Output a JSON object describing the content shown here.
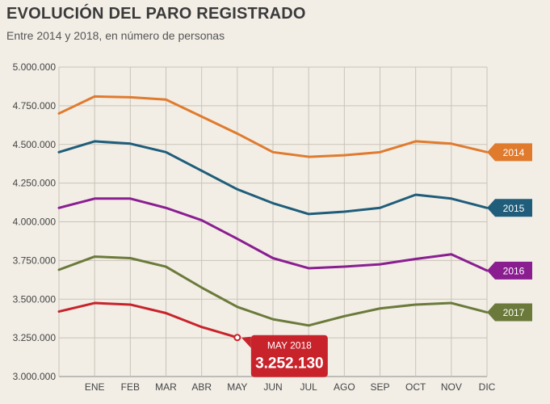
{
  "header": {
    "title": "EVOLUCIÓN DEL PARO REGISTRADO",
    "subtitle": "Entre 2014 y 2018, en número de personas"
  },
  "chart_data": {
    "type": "line",
    "title": "EVOLUCIÓN DEL PARO REGISTRADO",
    "subtitle": "Entre 2014 y 2018, en número de personas",
    "xlabel": "",
    "ylabel": "",
    "x_ticks": [
      "",
      "ENE",
      "FEB",
      "MAR",
      "ABR",
      "MAY",
      "JUN",
      "JUL",
      "AGO",
      "SEP",
      "OCT",
      "NOV",
      "DIC"
    ],
    "y_ticks": [
      "3.000.000",
      "3.250.000",
      "3.500.000",
      "3.750.000",
      "4.000.000",
      "4.250.000",
      "4.500.000",
      "4.750.000",
      "5.000.000"
    ],
    "ylim": [
      3000000,
      5000000
    ],
    "grid": true,
    "legend": "right end labels",
    "series": [
      {
        "name": "2014",
        "color": "#e07b2e",
        "values": [
          4700000,
          4810000,
          4805000,
          4790000,
          4680000,
          4570000,
          4450000,
          4420000,
          4430000,
          4450000,
          4520000,
          4505000,
          4450000
        ]
      },
      {
        "name": "2015",
        "color": "#1f5d7a",
        "values": [
          4450000,
          4520000,
          4505000,
          4450000,
          4330000,
          4210000,
          4120000,
          4050000,
          4065000,
          4090000,
          4175000,
          4150000,
          4090000
        ]
      },
      {
        "name": "2016",
        "color": "#8a1e91",
        "values": [
          4090000,
          4150000,
          4150000,
          4090000,
          4010000,
          3890000,
          3765000,
          3700000,
          3710000,
          3725000,
          3760000,
          3790000,
          3685000
        ]
      },
      {
        "name": "2017",
        "color": "#6b7a3a",
        "values": [
          3690000,
          3775000,
          3765000,
          3710000,
          3575000,
          3450000,
          3370000,
          3330000,
          3390000,
          3440000,
          3465000,
          3475000,
          3415000
        ]
      },
      {
        "name": "2018",
        "color": "#c8232b",
        "values": [
          3420000,
          3475000,
          3465000,
          3410000,
          3320000,
          3252130
        ]
      }
    ],
    "annotation": {
      "label": "MAY 2018",
      "value": "3.252.130",
      "color": "#c8232b"
    }
  }
}
